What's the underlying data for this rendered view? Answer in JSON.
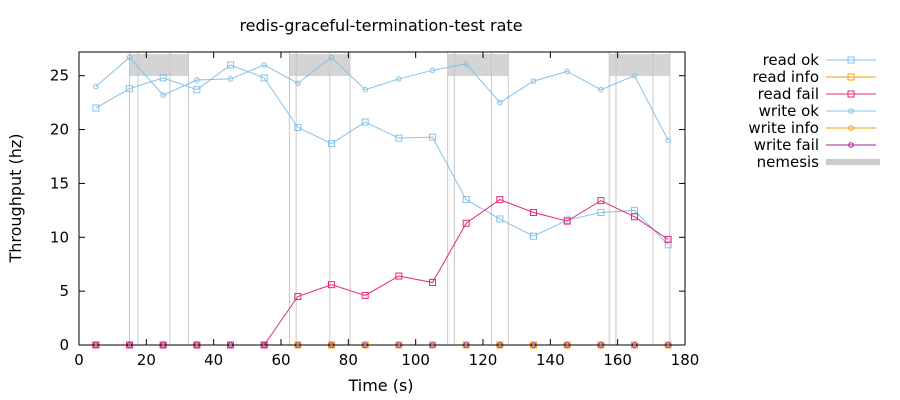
{
  "chart_data": {
    "type": "line",
    "title": "redis-graceful-termination-test rate",
    "xlabel": "Time (s)",
    "ylabel": "Throughput (hz)",
    "xlim": [
      0,
      180
    ],
    "ylim": [
      0,
      27.2
    ],
    "xticks": [
      "0",
      "20",
      "40",
      "60",
      "80",
      "100",
      "120",
      "140",
      "160",
      "180"
    ],
    "yticks": [
      "0",
      "5",
      "10",
      "15",
      "20",
      "25"
    ],
    "x": [
      5,
      15,
      25,
      35,
      45,
      55,
      65,
      75,
      85,
      95,
      105,
      115,
      125,
      135,
      145,
      155,
      165,
      175
    ],
    "series": [
      {
        "name": "read ok",
        "color": "#85c1e9",
        "marker": "square",
        "values": [
          22.0,
          23.8,
          24.8,
          23.7,
          26.0,
          24.8,
          20.2,
          18.7,
          20.7,
          19.2,
          19.3,
          13.5,
          11.7,
          10.1,
          11.6,
          12.3,
          12.5,
          9.3
        ]
      },
      {
        "name": "read info",
        "color": "#f39c12",
        "marker": "square",
        "values": [
          0,
          0,
          0,
          0,
          0,
          0,
          0,
          0,
          0,
          0,
          0,
          0,
          0,
          0,
          0,
          0,
          0,
          0
        ]
      },
      {
        "name": "read fail",
        "color": "#e5297a",
        "marker": "square",
        "values": [
          0,
          0,
          0,
          0,
          0,
          0,
          4.5,
          5.6,
          4.6,
          6.4,
          5.8,
          11.3,
          13.5,
          12.3,
          11.5,
          13.4,
          11.9,
          9.8
        ]
      },
      {
        "name": "write ok",
        "color": "#85c1e9",
        "marker": "circle",
        "values": [
          24.0,
          26.7,
          23.2,
          24.6,
          24.7,
          26.0,
          24.3,
          26.7,
          23.7,
          24.7,
          25.5,
          26.1,
          22.5,
          24.5,
          25.4,
          23.7,
          25.0,
          19.0
        ]
      },
      {
        "name": "write info",
        "color": "#f39c12",
        "marker": "circle",
        "values": [
          0,
          0,
          0,
          0,
          0,
          0,
          0,
          0,
          0,
          0,
          0,
          0,
          0,
          0,
          0,
          0,
          0,
          0
        ]
      },
      {
        "name": "write fail",
        "color": "#a020a0",
        "marker": "circle",
        "values": [
          0,
          0,
          0,
          0,
          0,
          0,
          0,
          0,
          0,
          0,
          0,
          0,
          0,
          0,
          0,
          0,
          0,
          0
        ]
      }
    ],
    "nemesis": {
      "name": "nemesis",
      "color": "#cccccc",
      "intervals": [
        [
          15,
          32.5
        ],
        [
          62.5,
          80.5
        ],
        [
          109.5,
          127.5
        ],
        [
          157.5,
          175.5
        ]
      ],
      "markers": [
        15,
        17.5,
        27,
        32.5,
        62.5,
        64.5,
        74.5,
        80.5,
        109.5,
        111.5,
        122.5,
        127.5,
        157.5,
        159.5,
        170.5,
        175.5
      ]
    },
    "grid": false,
    "legend_position": "outside-right"
  }
}
